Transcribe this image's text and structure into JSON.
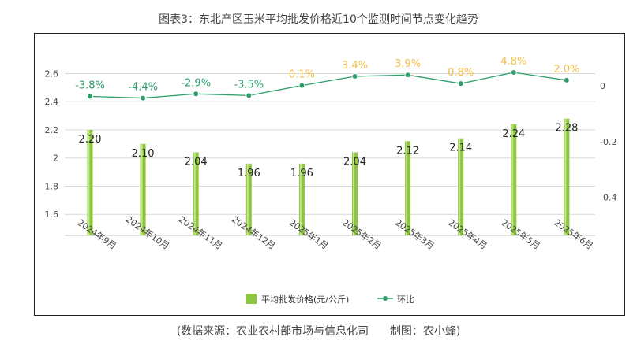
{
  "title": "图表3：东北产区玉米平均批发价格近10个监测时间节点变化趋势",
  "source": "(数据来源：农业农村部市场与信息化司      制图：农小蜂)",
  "colors": {
    "bar": "#8cc63f",
    "bar_light": "#c6e48b",
    "line": "#2e9f6a",
    "negative_label": "#2e9f6a",
    "positive_label": "#f3c04a",
    "grid": "#d9d9d9"
  },
  "chart_data": {
    "type": "bar",
    "categories": [
      "2024年9月",
      "2024年10月",
      "2024年11月",
      "2024年12月",
      "2025年1月",
      "2025年2月",
      "2025年3月",
      "2025年4月",
      "2025年5月",
      "2025年6月"
    ],
    "series": [
      {
        "name": "平均批发价格(元/公斤)",
        "type": "bar",
        "axis": "left",
        "values": [
          2.2,
          2.1,
          2.04,
          1.96,
          1.96,
          2.04,
          2.12,
          2.14,
          2.24,
          2.28
        ],
        "labels": [
          "2.20",
          "2.10",
          "2.04",
          "1.96",
          "1.96",
          "2.04",
          "2.12",
          "2.14",
          "2.24",
          "2.28"
        ]
      },
      {
        "name": "环比",
        "type": "line",
        "axis": "right",
        "values": [
          -0.038,
          -0.044,
          -0.029,
          -0.035,
          0.001,
          0.034,
          0.039,
          0.008,
          0.048,
          0.02
        ],
        "labels": [
          "-3.8%",
          "-4.4%",
          "-2.9%",
          "-3.5%",
          "0.1%",
          "3.4%",
          "3.9%",
          "0.8%",
          "4.8%",
          "2.0%"
        ]
      }
    ],
    "y_left": {
      "ticks": [
        "1.6",
        "1.8",
        "2",
        "2.2",
        "2.4",
        "2.6"
      ],
      "tick_values": [
        1.6,
        1.8,
        2.0,
        2.2,
        2.4,
        2.6
      ],
      "range": [
        1.45,
        2.67
      ]
    },
    "y_right": {
      "ticks": [
        "0",
        "-0.2",
        "-0.4"
      ],
      "tick_values": [
        0,
        -0.2,
        -0.4
      ],
      "range": [
        -0.55,
        0.055
      ]
    },
    "grid": true,
    "legend_position": "bottom"
  }
}
